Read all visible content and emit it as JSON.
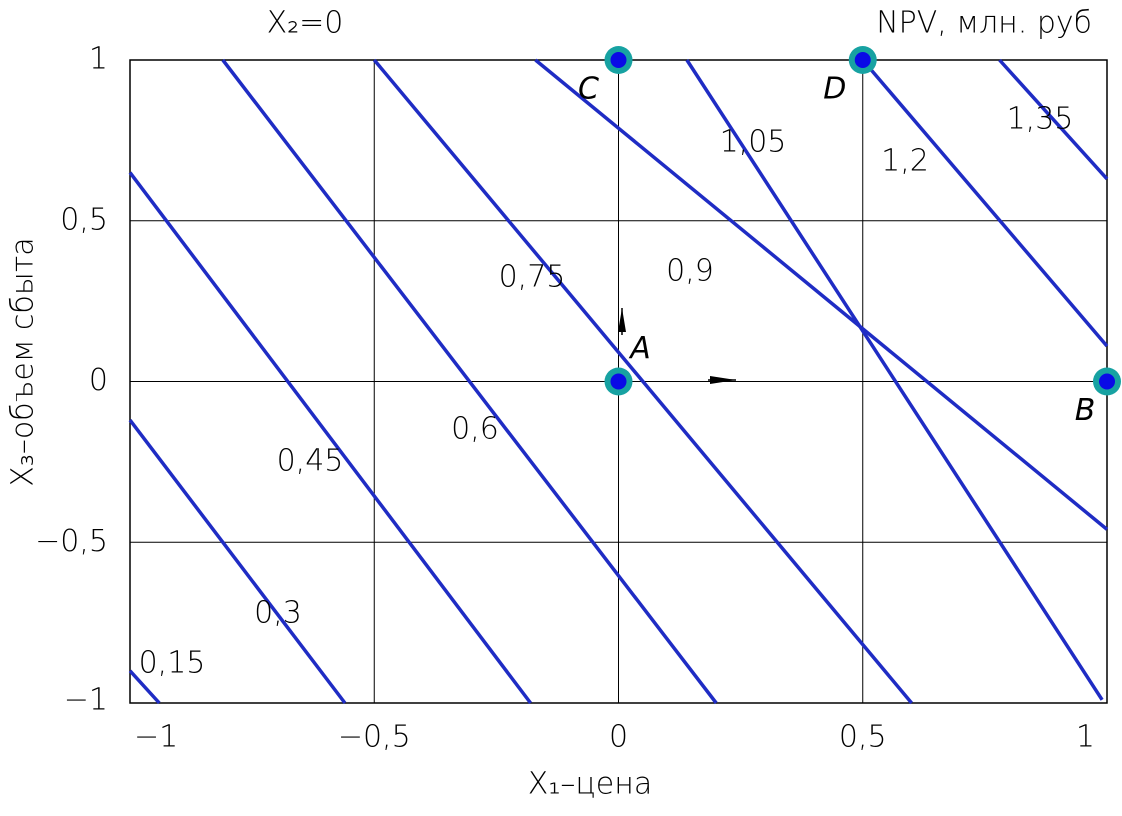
{
  "chart_data": {
    "type": "contour",
    "title": "X₂=0",
    "subtitle": "NPV, млн. руб",
    "x_label": "X₁–цена",
    "y_label": "X₃–объем сбыта",
    "xlim": [
      -1,
      1
    ],
    "ylim": [
      -1,
      1
    ],
    "xticks": [
      {
        "value": -1,
        "label": "−1"
      },
      {
        "value": -0.5,
        "label": "−0,5"
      },
      0,
      {
        "value": 0.5,
        "label": "0,5"
      },
      1
    ],
    "yticks": [
      {
        "value": -1,
        "label": "−1"
      },
      {
        "value": -0.5,
        "label": "−0,5"
      },
      0,
      {
        "value": 0.5,
        "label": "0,5"
      },
      1
    ],
    "grid": true,
    "color": "#1f2cc4",
    "contours": [
      {
        "level": 0.15,
        "label": "0,15",
        "x": [
          -1,
          -0.94
        ],
        "y": [
          -0.9,
          -1
        ]
      },
      {
        "level": 0.3,
        "label": "0,3",
        "x": [
          -1,
          -0.56
        ],
        "y": [
          -0.12,
          -1
        ]
      },
      {
        "level": 0.45,
        "label": "0,45",
        "x": [
          -1,
          -0.18
        ],
        "y": [
          0.65,
          -1
        ]
      },
      {
        "level": 0.6,
        "label": "0,6",
        "x": [
          -0.81,
          0.2
        ],
        "y": [
          1,
          -1
        ]
      },
      {
        "level": 0.75,
        "label": "0,75",
        "x": [
          -0.5,
          0.6
        ],
        "y": [
          1,
          -1
        ]
      },
      {
        "level": 0.9,
        "label": "0,9",
        "x": [
          -0.17,
          1
        ],
        "y": [
          1,
          -0.46
        ]
      },
      {
        "level": 1.05,
        "label": "1,05",
        "x": [
          0.14,
          0.99
        ],
        "y": [
          1,
          -0.99
        ]
      },
      {
        "level": 1.2,
        "label": "1,2",
        "x": [
          0.5,
          1
        ],
        "y": [
          1,
          0.11
        ]
      },
      {
        "level": 1.35,
        "label": "1,35",
        "x": [
          0.78,
          1
        ],
        "y": [
          1,
          0.63
        ]
      }
    ],
    "points": [
      {
        "name": "A",
        "x": 0,
        "y": 0
      },
      {
        "name": "B",
        "x": 1,
        "y": 0
      },
      {
        "name": "C",
        "x": 0,
        "y": 1
      },
      {
        "name": "D",
        "x": 0.5,
        "y": 1
      }
    ]
  }
}
